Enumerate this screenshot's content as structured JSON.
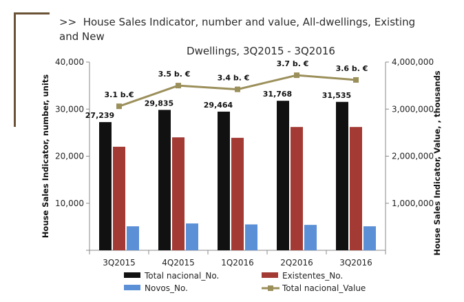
{
  "header": {
    "prefix": ">>",
    "title_line1": "House Sales Indicator, number and value, All-dwellings, Existing and New",
    "title_line2": "Dwellings, 3Q2015 - 3Q2016"
  },
  "chart_data": {
    "type": "bar",
    "categories": [
      "3Q2015",
      "4Q2015",
      "1Q2016",
      "2Q2016",
      "3Q2016"
    ],
    "ylabel": "House Sales Indicator, number, units",
    "y2label": "House Sales  Indicator, Value, , thousands",
    "ylim": [
      0,
      40000
    ],
    "y2lim": [
      0,
      4000000
    ],
    "yticks": [
      "10,000",
      "20,000",
      "30,000",
      "40,000"
    ],
    "y2ticks": [
      "1,000,000",
      "2,000,000",
      "3,000,000",
      "4,000,000"
    ],
    "grid": false,
    "legend_placement": "bottom",
    "series": [
      {
        "name": "Total nacional_No.",
        "type": "bar",
        "axis": "left",
        "color": "#111111",
        "values": [
          27239,
          29835,
          29464,
          31768,
          31535
        ],
        "labels": [
          "27,239",
          "29,835",
          "29,464",
          "31,768",
          "31,535"
        ]
      },
      {
        "name": "Existentes_No.",
        "type": "bar",
        "axis": "left",
        "color": "#a33a34",
        "values": [
          22000,
          24000,
          23900,
          26200,
          26200
        ]
      },
      {
        "name": "Novos_No.",
        "type": "bar",
        "axis": "left",
        "color": "#5b8fd6",
        "values": [
          5100,
          5700,
          5500,
          5400,
          5100
        ]
      },
      {
        "name": "Total nacional_Value",
        "type": "line",
        "axis": "right",
        "color": "#9b8f5a",
        "values": [
          3060000,
          3500000,
          3420000,
          3720000,
          3620000
        ],
        "labels": [
          "3.1 b.€",
          "3.5 b. €",
          "3.4 b. €",
          "3.7 b. €",
          "3.6 b. €"
        ]
      }
    ]
  }
}
